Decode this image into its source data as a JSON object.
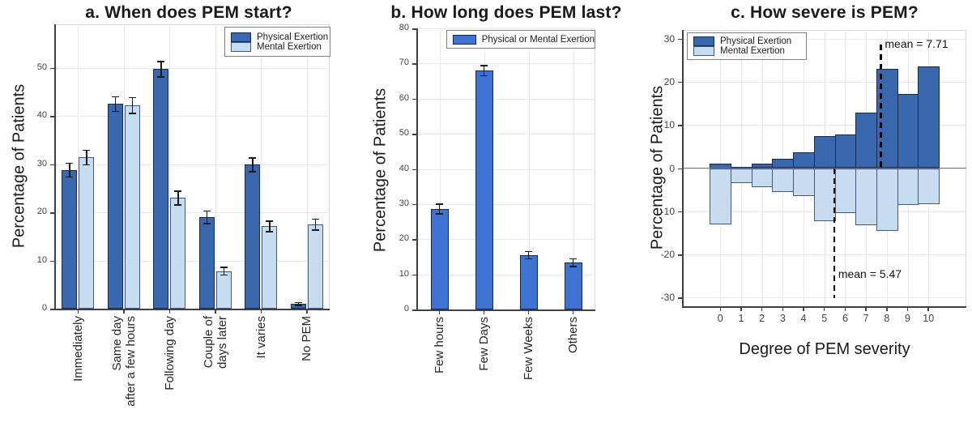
{
  "figure_background": "#ffffff",
  "chart_data": [
    {
      "type": "bar",
      "panel": "a",
      "title": "a. When does PEM start?",
      "ylabel": "Percentage of Patients",
      "xlabel": "",
      "ylim": [
        0,
        59
      ],
      "yticks": [
        0,
        10,
        20,
        30,
        40,
        50
      ],
      "grid": true,
      "legend_position": "top-right",
      "categories": [
        "Immediately",
        "Same day\nafter a few hours",
        "Following day",
        "Couple of\ndays later",
        "It varies",
        "No PEM"
      ],
      "series": [
        {
          "name": "Physical Exertion",
          "color": "#3A68AE",
          "edge_color": "#17294B",
          "values": [
            28.8,
            42.5,
            49.7,
            19.0,
            29.9,
            1.0
          ],
          "errors": [
            1.5,
            1.6,
            1.7,
            1.4,
            1.5,
            0.4
          ]
        },
        {
          "name": "Mental Exertion",
          "color": "#C5DCF1",
          "edge_color": "#44597A",
          "values": [
            31.4,
            42.2,
            23.0,
            7.8,
            17.1,
            17.5
          ],
          "errors": [
            1.6,
            1.7,
            1.5,
            0.9,
            1.2,
            1.2
          ]
        }
      ]
    },
    {
      "type": "bar",
      "panel": "b",
      "title": "b. How long does PEM last?",
      "ylabel": "Percentage of Patients",
      "xlabel": "",
      "ylim": [
        0,
        80
      ],
      "yticks": [
        0,
        10,
        20,
        30,
        40,
        50,
        60,
        70,
        80
      ],
      "grid": true,
      "legend_position": "top-center",
      "categories": [
        "Few hours",
        "Few Days",
        "Few Weeks",
        "Others"
      ],
      "series": [
        {
          "name": "Physical or Mental Exertion",
          "color": "#3E73D4",
          "edge_color": "#17294B",
          "values": [
            28.6,
            68.0,
            15.5,
            13.4
          ],
          "errors": [
            1.5,
            1.6,
            1.2,
            1.2
          ]
        }
      ]
    },
    {
      "type": "diverging-histogram",
      "panel": "c",
      "title": "c. How severe is PEM?",
      "ylabel": "Percentage of Patients",
      "xlabel": "Degree of PEM severity",
      "ylim": [
        -32,
        32
      ],
      "yticks": [
        -30,
        -20,
        -10,
        0,
        10,
        20,
        30
      ],
      "xticks": [
        0,
        1,
        2,
        3,
        4,
        5,
        6,
        7,
        8,
        9,
        10
      ],
      "grid": true,
      "legend_position": "top-left",
      "x": [
        0,
        1,
        2,
        3,
        4,
        5,
        6,
        7,
        8,
        9,
        10
      ],
      "series": [
        {
          "name": "Physical Exertion",
          "color": "#3A68AE",
          "edge_color": "#17294B",
          "values": [
            1.0,
            0.3,
            1.1,
            2.1,
            3.6,
            7.4,
            7.7,
            12.9,
            22.9,
            17.2,
            23.6
          ]
        },
        {
          "name": "Mental Exertion",
          "color": "#C5DCF1",
          "edge_color": "#44597A",
          "values": [
            -13.0,
            -3.4,
            -4.4,
            -5.6,
            -6.4,
            -12.3,
            -10.5,
            -13.3,
            -14.5,
            -8.6,
            -8.4
          ]
        }
      ],
      "annotations": [
        {
          "label": "mean = 7.71",
          "x": 7.71,
          "region": "upper"
        },
        {
          "label": "mean = 5.47",
          "x": 5.47,
          "region": "lower"
        }
      ]
    }
  ]
}
